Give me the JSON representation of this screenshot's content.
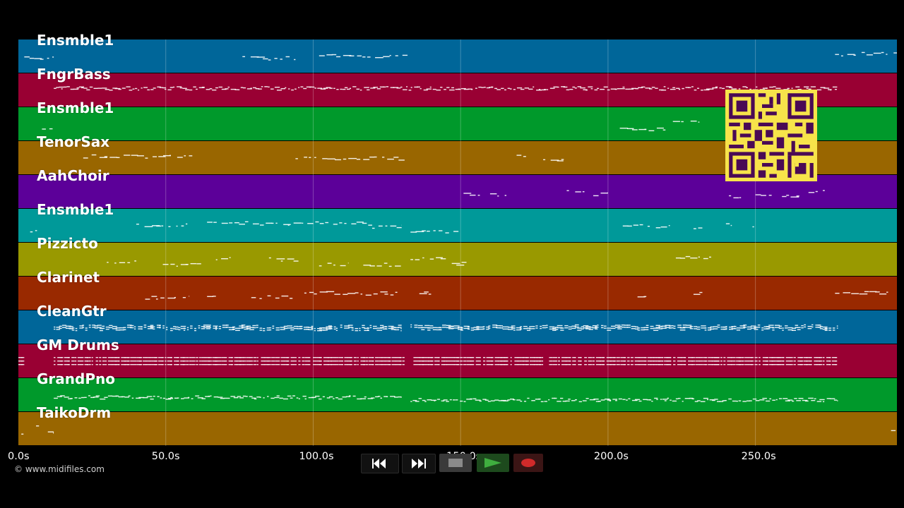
{
  "tracks": [
    {
      "name": "Ensmble1",
      "color": "#006699"
    },
    {
      "name": "FngrBass",
      "color": "#990033"
    },
    {
      "name": "Ensmble1",
      "color": "#00992b"
    },
    {
      "name": "TenorSax",
      "color": "#996600"
    },
    {
      "name": "AahChoir",
      "color": "#5c0099"
    },
    {
      "name": "Ensmble1",
      "color": "#009999"
    },
    {
      "name": "Pizzicto",
      "color": "#999900"
    },
    {
      "name": "Clarinet",
      "color": "#992900"
    },
    {
      "name": "CleanGtr",
      "color": "#006699"
    },
    {
      "name": "GM Drums",
      "color": "#990033"
    },
    {
      "name": "GrandPno",
      "color": "#00992b"
    },
    {
      "name": "TaikoDrm",
      "color": "#996600"
    }
  ],
  "timeline": {
    "ticks": [
      "0.0s",
      "50.0s",
      "100.0s",
      "150.0s",
      "200.0s",
      "250.0s"
    ],
    "tick_seconds": [
      0,
      50,
      100,
      150,
      200,
      250
    ],
    "end_seconds": 298
  },
  "copyright": "© www.midifiles.com",
  "transport": {
    "rewind": "rewind-icon",
    "fast_forward": "fast-forward-icon",
    "stop": "stop-icon",
    "play": "play-icon",
    "record": "record-icon"
  },
  "qr_code": "qr-code",
  "note_regions": [
    [
      [
        2,
        12
      ],
      [
        76,
        94
      ],
      [
        102,
        132
      ],
      [
        277,
        298
      ]
    ],
    [
      [
        12,
        278
      ]
    ],
    [
      [
        8,
        13
      ],
      [
        204,
        220
      ],
      [
        222,
        226
      ],
      [
        228,
        231
      ]
    ],
    [
      [
        22,
        59
      ],
      [
        94,
        131
      ],
      [
        169,
        174
      ],
      [
        178,
        185
      ]
    ],
    [
      [
        151,
        157
      ],
      [
        160,
        166
      ],
      [
        186,
        192
      ],
      [
        195,
        200
      ],
      [
        241,
        246
      ],
      [
        250,
        256
      ],
      [
        259,
        265
      ],
      [
        268,
        274
      ]
    ],
    [
      [
        4,
        7
      ],
      [
        40,
        58
      ],
      [
        64,
        120
      ],
      [
        120,
        130
      ],
      [
        133,
        150
      ],
      [
        205,
        221
      ],
      [
        229,
        232
      ],
      [
        240,
        242
      ],
      [
        249,
        251
      ]
    ],
    [
      [
        30,
        40
      ],
      [
        49,
        62
      ],
      [
        67,
        72
      ],
      [
        85,
        95
      ],
      [
        102,
        112
      ],
      [
        117,
        130
      ],
      [
        133,
        145
      ],
      [
        147,
        152
      ],
      [
        223,
        235
      ]
    ],
    [
      [
        43,
        58
      ],
      [
        64,
        67
      ],
      [
        79,
        93
      ],
      [
        97,
        129
      ],
      [
        136,
        140
      ],
      [
        210,
        213
      ],
      [
        229,
        232
      ],
      [
        277,
        295
      ]
    ],
    [
      [
        12,
        130
      ],
      [
        133,
        278
      ]
    ],
    [
      [
        0,
        2
      ],
      [
        12,
        131
      ],
      [
        134,
        178
      ],
      [
        180,
        278
      ]
    ],
    [
      [
        12,
        130
      ],
      [
        133,
        278
      ]
    ],
    [
      [
        1,
        2
      ],
      [
        6,
        7
      ],
      [
        10,
        12
      ],
      [
        296,
        298
      ]
    ]
  ]
}
